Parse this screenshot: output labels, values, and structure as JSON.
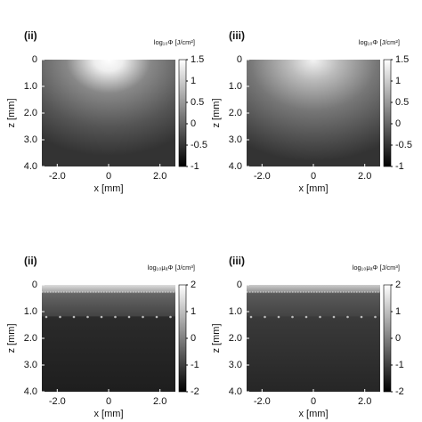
{
  "chart_data": [
    {
      "type": "heatmap",
      "label": "(ii)",
      "colorbar_title": "log₁₀Φ [J/cm²]",
      "xlabel": "x [mm]",
      "ylabel": "z [mm]",
      "xlim": [
        -2.6,
        2.6
      ],
      "xticks": [
        {
          "value": -2,
          "label": "-2.0"
        },
        0,
        {
          "value": 2,
          "label": "2.0"
        }
      ],
      "ylim": [
        0,
        4
      ],
      "yticks": [
        0,
        {
          "value": 1,
          "label": "1.0"
        },
        {
          "value": 2,
          "label": "2.0"
        },
        {
          "value": 3,
          "label": "3.0"
        },
        {
          "value": 4,
          "label": "4.0"
        }
      ],
      "clim": [
        -1,
        1.5
      ],
      "cticks": [
        1.5,
        1,
        0.5,
        0,
        -0.5,
        -1
      ]
    },
    {
      "type": "heatmap",
      "label": "(iii)",
      "colorbar_title": "log₁₀Φ [J/cm²]",
      "xlabel": "x [mm]",
      "ylabel": "z [mm]",
      "xlim": [
        -2.6,
        2.6
      ],
      "xticks": [
        {
          "value": -2,
          "label": "-2.0"
        },
        0,
        {
          "value": 2,
          "label": "2.0"
        }
      ],
      "ylim": [
        0,
        4
      ],
      "yticks": [
        0,
        {
          "value": 1,
          "label": "1.0"
        },
        {
          "value": 2,
          "label": "2.0"
        },
        {
          "value": 3,
          "label": "3.0"
        },
        {
          "value": 4,
          "label": "4.0"
        }
      ],
      "clim": [
        -1,
        1.5
      ],
      "cticks": [
        1.5,
        1,
        0.5,
        0,
        -0.5,
        -1
      ]
    },
    {
      "type": "heatmap",
      "label": "(ii)",
      "colorbar_title": "log₁₀μₐΦ [J/cm³]",
      "xlabel": "x [mm]",
      "ylabel": "z [mm]",
      "xlim": [
        -2.6,
        2.6
      ],
      "xticks": [
        {
          "value": -2,
          "label": "-2.0"
        },
        0,
        {
          "value": 2,
          "label": "2.0"
        }
      ],
      "ylim": [
        0,
        4
      ],
      "yticks": [
        0,
        {
          "value": 1,
          "label": "1.0"
        },
        {
          "value": 2,
          "label": "2.0"
        },
        {
          "value": 3,
          "label": "3.0"
        },
        {
          "value": 4,
          "label": "4.0"
        }
      ],
      "clim": [
        -2,
        2
      ],
      "cticks": [
        2,
        1,
        0,
        -1,
        -2
      ]
    },
    {
      "type": "heatmap",
      "label": "(iii)",
      "colorbar_title": "log₁₀μₐΦ [J/cm³]",
      "xlabel": "x [mm]",
      "ylabel": "z [mm]",
      "xlim": [
        -2.6,
        2.6
      ],
      "xticks": [
        {
          "value": -2,
          "label": "-2.0"
        },
        0,
        {
          "value": 2,
          "label": "2.0"
        }
      ],
      "ylim": [
        0,
        4
      ],
      "yticks": [
        0,
        {
          "value": 1,
          "label": "1.0"
        },
        {
          "value": 2,
          "label": "2.0"
        },
        {
          "value": 3,
          "label": "3.0"
        },
        {
          "value": 4,
          "label": "4.0"
        }
      ],
      "clim": [
        -2,
        2
      ],
      "cticks": [
        2,
        1,
        0,
        -1,
        -2
      ]
    }
  ]
}
